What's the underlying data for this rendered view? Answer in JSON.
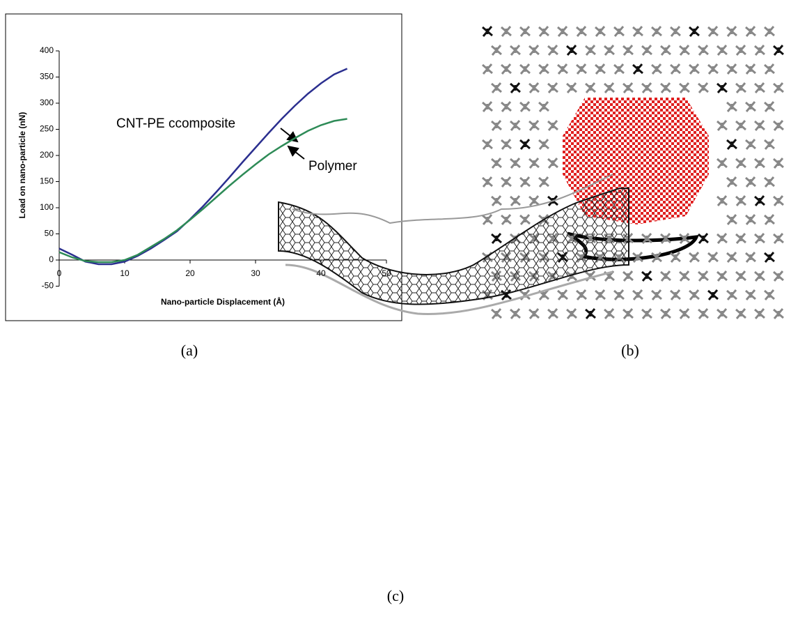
{
  "chart_data": {
    "type": "line",
    "x_label": "Nano-particle Displacement (Å)",
    "y_label": "Load on nano-particle (nN)",
    "x": [
      0,
      2,
      4,
      6,
      8,
      10,
      12,
      14,
      16,
      18,
      20,
      22,
      24,
      26,
      28,
      30,
      32,
      34,
      36,
      38,
      40,
      42,
      44
    ],
    "series": [
      {
        "name": "CNT-PE ccomposite",
        "color": "#2b2f8f",
        "values": [
          22,
          10,
          -3,
          -8,
          -8,
          -3,
          8,
          22,
          38,
          55,
          78,
          103,
          130,
          158,
          187,
          215,
          243,
          270,
          295,
          318,
          338,
          355,
          366
        ]
      },
      {
        "name": "Polymer",
        "color": "#2e8b57",
        "values": [
          15,
          5,
          -2,
          -4,
          -4,
          0,
          10,
          25,
          40,
          57,
          77,
          98,
          120,
          142,
          163,
          183,
          202,
          218,
          233,
          247,
          258,
          266,
          270
        ]
      }
    ],
    "xlim": [
      0,
      50
    ],
    "xticks": [
      0,
      10,
      20,
      30,
      40,
      50
    ],
    "ylim": [
      -50,
      400
    ],
    "yticks": [
      -50,
      0,
      50,
      100,
      150,
      200,
      250,
      300,
      350,
      400
    ]
  },
  "panels": [
    "(a)",
    "(b)",
    "(c)"
  ]
}
